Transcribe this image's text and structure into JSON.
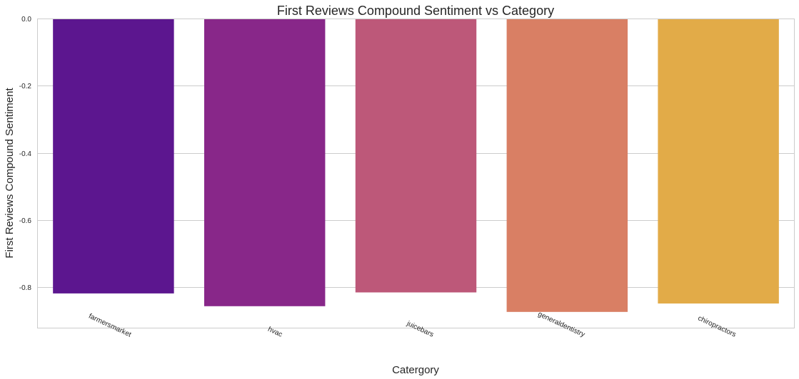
{
  "chart_data": {
    "type": "bar",
    "title": "First Reviews Compound Sentiment vs Category",
    "xlabel": "Catergory",
    "ylabel": "First Reviews Compound Sentiment",
    "categories": [
      "farmersmarket",
      "hvac",
      "juicebars",
      "generaldentistry",
      "chiropractors"
    ],
    "values": [
      -0.818,
      -0.856,
      -0.815,
      -0.873,
      -0.848
    ],
    "ylim": [
      -0.92,
      0.0
    ],
    "yticks": [
      0.0,
      -0.2,
      -0.4,
      -0.6,
      -0.8
    ],
    "ytick_labels": [
      "0.0",
      "-0.2",
      "-0.4",
      "-0.6",
      "-0.8"
    ],
    "colors": [
      "#5c168f",
      "#882789",
      "#bd5879",
      "#d97f64",
      "#e2ab48"
    ],
    "grid": "y",
    "legend": "none"
  }
}
